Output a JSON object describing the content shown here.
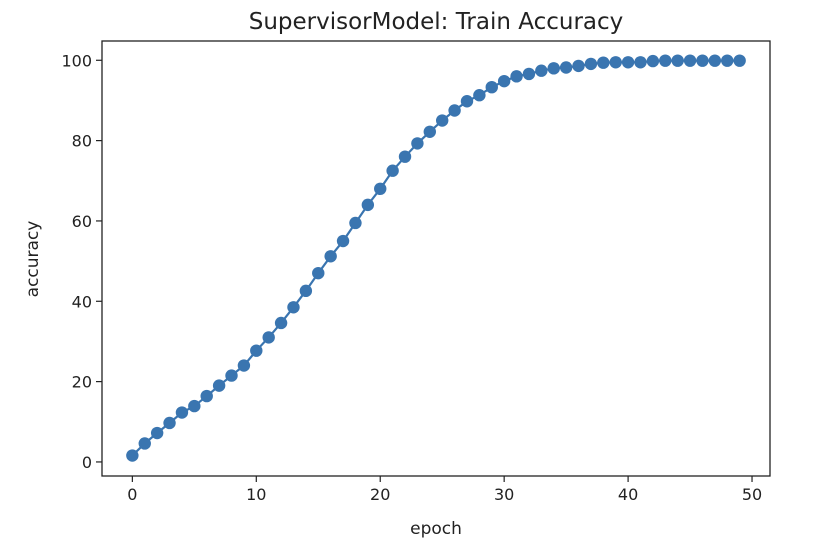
{
  "chart_data": {
    "type": "line",
    "title": "SupervisorModel: Train Accuracy",
    "xlabel": "epoch",
    "ylabel": "accuracy",
    "xlim": [
      -2.45,
      51.45
    ],
    "ylim": [
      -3.5,
      104.8
    ],
    "xticks": [
      0,
      10,
      20,
      30,
      40,
      50
    ],
    "yticks": [
      0,
      20,
      40,
      60,
      80,
      100
    ],
    "grid": false,
    "marker": "circle",
    "color": "#3a75b0",
    "series": [
      {
        "x": [
          0,
          1,
          2,
          3,
          4,
          5,
          6,
          7,
          8,
          9,
          10,
          11,
          12,
          13,
          14,
          15,
          16,
          17,
          18,
          19,
          20,
          21,
          22,
          23,
          24,
          25,
          26,
          27,
          28,
          29,
          30,
          31,
          32,
          33,
          34,
          35,
          36,
          37,
          38,
          39,
          40,
          41,
          42,
          43,
          44,
          45,
          46,
          47,
          48,
          49
        ],
        "values": [
          1.6,
          4.6,
          7.2,
          9.7,
          12.3,
          13.9,
          16.4,
          19.0,
          21.5,
          24.0,
          27.7,
          31.0,
          34.6,
          38.5,
          42.6,
          47.0,
          51.2,
          55.0,
          59.5,
          64.0,
          68.0,
          72.5,
          76.0,
          79.3,
          82.2,
          85.0,
          87.5,
          89.8,
          91.3,
          93.3,
          94.8,
          96.0,
          96.6,
          97.4,
          98.0,
          98.2,
          98.6,
          99.1,
          99.4,
          99.5,
          99.5,
          99.5,
          99.8,
          99.9,
          99.9,
          99.9,
          99.9,
          99.9,
          99.9,
          99.9
        ]
      }
    ]
  }
}
